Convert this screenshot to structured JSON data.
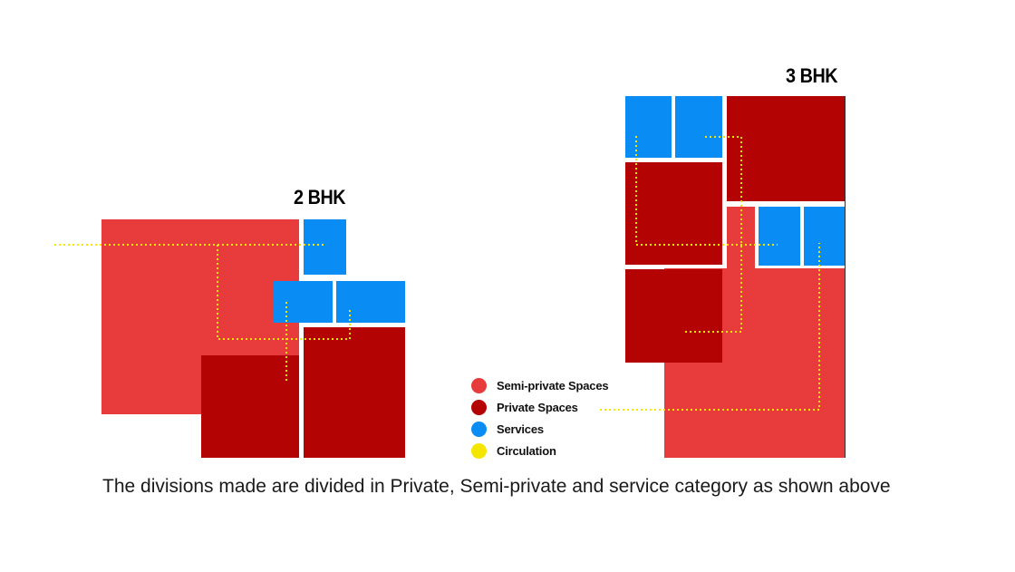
{
  "titles": {
    "two_bhk": "2 BHK",
    "three_bhk": "3 BHK"
  },
  "legend": [
    {
      "label": "Semi-private Spaces",
      "color": "#e83c3c"
    },
    {
      "label": "Private Spaces",
      "color": "#b30303"
    },
    {
      "label": "Services",
      "color": "#0a8cf5"
    },
    {
      "label": "Circulation",
      "color": "#f5e600"
    }
  ],
  "colors": {
    "semi_private": "#e83c3c",
    "private": "#b30303",
    "services": "#0a8cf5",
    "circulation": "#f5e600",
    "divider": "#ffffff"
  },
  "caption": "The divisions made are divided in Private, Semi-private and service category as shown above"
}
